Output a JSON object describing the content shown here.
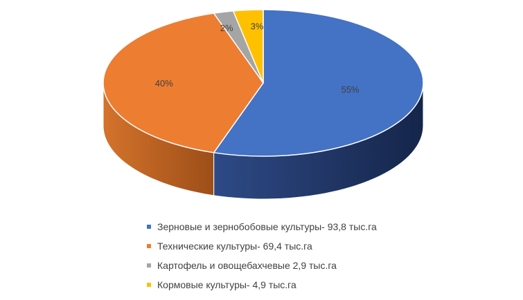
{
  "chart_data": {
    "type": "pie",
    "style": "3d",
    "title": "",
    "categories": [
      "Зерновые и зернобобовые культуры- 93,8 тыс.га",
      "Технические культуры- 69,4 тыс.га",
      "Картофель и овощебахчевые 2,9 тыс.га",
      "Кормовые культуры- 4,9 тыс.га"
    ],
    "values": [
      55,
      40,
      2,
      3
    ],
    "value_labels": [
      "55%",
      "40%",
      "2%",
      "3%"
    ],
    "colors": [
      "#4472C4",
      "#ED7D31",
      "#A5A5A5",
      "#FFC000"
    ],
    "legend_position": "bottom"
  }
}
